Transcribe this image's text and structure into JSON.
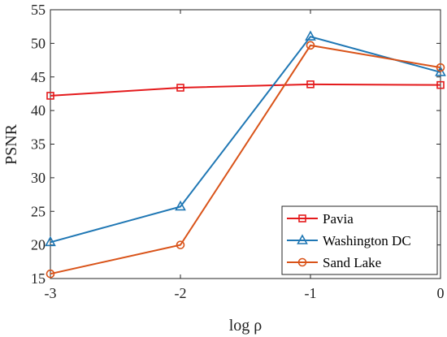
{
  "chart_data": {
    "type": "line",
    "title": "",
    "xlabel": "log ρ",
    "ylabel": "PSNR",
    "xlim": [
      -3,
      0
    ],
    "ylim": [
      15,
      55
    ],
    "x": [
      -3,
      -2,
      -1,
      0
    ],
    "x_tick_labels": [
      "-3",
      "-2",
      "-1",
      "0"
    ],
    "y_tick_labels": [
      "15",
      "20",
      "25",
      "30",
      "35",
      "40",
      "45",
      "50",
      "55"
    ],
    "grid": false,
    "legend_position": "bottom-right",
    "series": [
      {
        "name": "Pavia",
        "values": [
          42.2,
          43.4,
          43.9,
          43.8
        ],
        "color": "#e41a1c",
        "marker": "square"
      },
      {
        "name": "Washington DC",
        "values": [
          20.4,
          25.7,
          51.0,
          45.7
        ],
        "color": "#1f77b4",
        "marker": "triangle"
      },
      {
        "name": "Sand Lake",
        "values": [
          15.7,
          20.0,
          49.7,
          46.4
        ],
        "color": "#d95319",
        "marker": "circle"
      }
    ]
  }
}
